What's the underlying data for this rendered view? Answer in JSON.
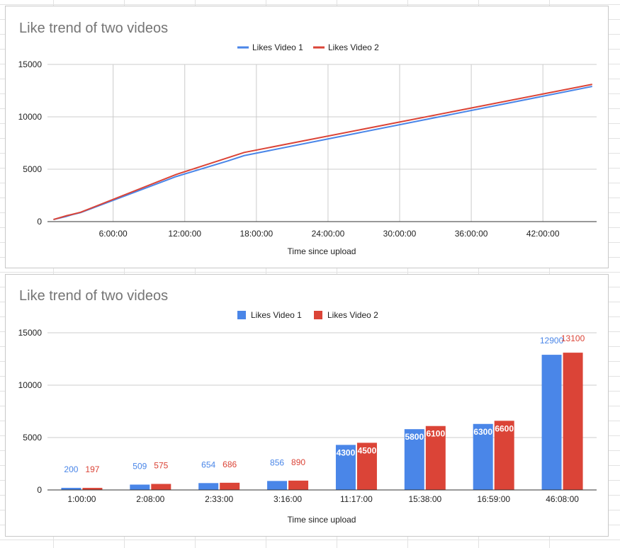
{
  "colors": {
    "video1": "#4a86e8",
    "video2": "#db4437",
    "grid": "#cccccc",
    "axis": "#333333"
  },
  "chart_data": [
    {
      "type": "line",
      "title": "Like trend of two videos",
      "xlabel": "Time since upload",
      "ylabel": "",
      "x_unit": "hours",
      "xlim": [
        0.5,
        46.5
      ],
      "ylim": [
        0,
        15000
      ],
      "x_ticks": [
        6,
        12,
        18,
        24,
        30,
        36,
        42
      ],
      "x_tick_labels": [
        "6:00:00",
        "12:00:00",
        "18:00:00",
        "24:00:00",
        "30:00:00",
        "36:00:00",
        "42:00:00"
      ],
      "y_ticks": [
        0,
        5000,
        10000,
        15000
      ],
      "y_tick_labels": [
        "0",
        "5000",
        "10000",
        "15000"
      ],
      "grid": true,
      "legend_position": "top",
      "series": [
        {
          "name": "Likes Video 1",
          "color": "#4a86e8",
          "x": [
            1.0,
            2.13,
            2.55,
            3.27,
            11.28,
            15.63,
            16.98,
            46.13
          ],
          "y": [
            200,
            509,
            654,
            856,
            4300,
            5800,
            6300,
            12900
          ]
        },
        {
          "name": "Likes Video 2",
          "color": "#db4437",
          "x": [
            1.0,
            2.13,
            2.55,
            3.27,
            11.28,
            15.63,
            16.98,
            46.13
          ],
          "y": [
            197,
            575,
            686,
            890,
            4500,
            6100,
            6600,
            13100
          ]
        }
      ]
    },
    {
      "type": "bar",
      "title": "Like trend of two videos",
      "xlabel": "Time since upload",
      "ylabel": "",
      "categories": [
        "1:00:00",
        "2:08:00",
        "2:33:00",
        "3:16:00",
        "11:17:00",
        "15:38:00",
        "16:59:00",
        "46:08:00"
      ],
      "ylim": [
        0,
        15000
      ],
      "y_ticks": [
        0,
        5000,
        10000,
        15000
      ],
      "y_tick_labels": [
        "0",
        "5000",
        "10000",
        "15000"
      ],
      "grid": true,
      "legend_position": "top",
      "data_labels": true,
      "series": [
        {
          "name": "Likes Video 1",
          "color": "#4a86e8",
          "values": [
            200,
            509,
            654,
            856,
            4300,
            5800,
            6300,
            12900
          ]
        },
        {
          "name": "Likes Video 2",
          "color": "#db4437",
          "values": [
            197,
            575,
            686,
            890,
            4500,
            6100,
            6600,
            13100
          ]
        }
      ]
    }
  ]
}
